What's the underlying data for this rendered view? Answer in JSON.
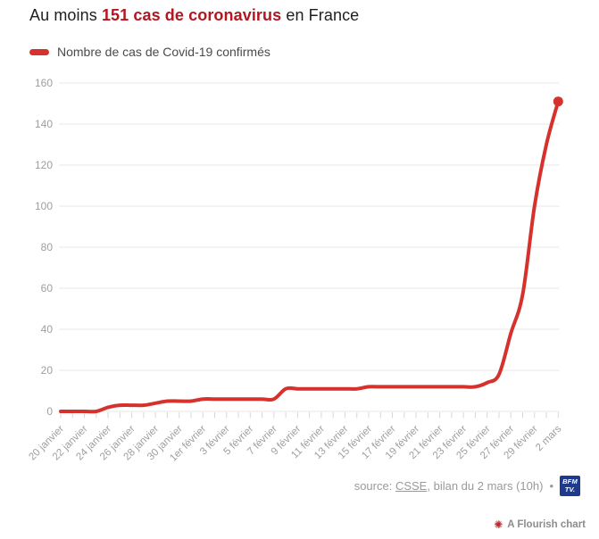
{
  "header": {
    "title_prefix": "Au moins ",
    "title_highlight": "151 cas de coronavirus",
    "title_suffix": " en France"
  },
  "legend": {
    "label": "Nombre de cas de Covid-19 confirmés"
  },
  "chart_data": {
    "type": "line",
    "title": "Au moins 151 cas de coronavirus en France",
    "x_tick_labels": [
      "20 janvier",
      "22 janvier",
      "24 janvier",
      "26 janvier",
      "28 janvier",
      "30 janvier",
      "1er février",
      "3 février",
      "5 février",
      "7 février",
      "9 février",
      "11 février",
      "13 février",
      "15 février",
      "17 février",
      "19 février",
      "21 février",
      "23 février",
      "25 février",
      "27 février",
      "29 février",
      "2 mars"
    ],
    "x_minor_tick_interval_days": 1,
    "x_label_interval_days": 2,
    "series": [
      {
        "name": "Nombre de cas de Covid-19 confirmés",
        "color": "#d5312d",
        "values": [
          0,
          0,
          0,
          0,
          2,
          3,
          3,
          3,
          4,
          5,
          5,
          5,
          6,
          6,
          6,
          6,
          6,
          6,
          6,
          11,
          11,
          11,
          11,
          11,
          11,
          11,
          12,
          12,
          12,
          12,
          12,
          12,
          12,
          12,
          12,
          12,
          14,
          18,
          38,
          57,
          100,
          130,
          151
        ]
      }
    ],
    "final_value": 151,
    "end_dot": true,
    "ylim": [
      0,
      160
    ],
    "yticks": [
      0,
      20,
      40,
      60,
      80,
      100,
      120,
      140,
      160
    ],
    "grid": "horizontal",
    "legend_position": "top-left"
  },
  "footer": {
    "source_prefix": "source: ",
    "source_link": "CSSE",
    "source_suffix": ", bilan du 2 mars (10h)",
    "separator": "•",
    "logo_line1": "BFM",
    "logo_line2": "TV."
  },
  "attribution": {
    "icon_glyph": "✺",
    "label": "A Flourish chart"
  },
  "colors": {
    "line": "#d5312d",
    "highlight": "#b11621",
    "logo": "#1e3a8f",
    "grid": "#e7e7e7",
    "axistext": "#9e9e9e"
  }
}
